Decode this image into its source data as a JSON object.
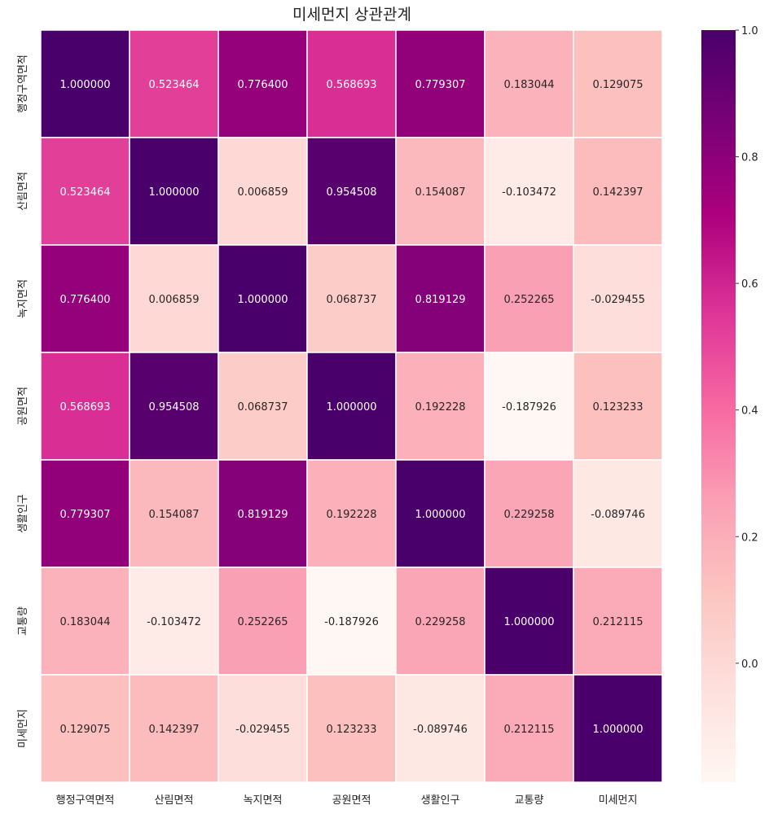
{
  "chart_data": {
    "type": "heatmap",
    "title": "미세먼지 상관관계",
    "labels": [
      "행정구역면적",
      "산림면적",
      "녹지면적",
      "공원면적",
      "생활인구",
      "교통량",
      "미세먼지"
    ],
    "matrix": [
      [
        1.0,
        0.523464,
        0.7764,
        0.568693,
        0.779307,
        0.183044,
        0.129075
      ],
      [
        0.523464,
        1.0,
        0.006859,
        0.954508,
        0.154087,
        -0.103472,
        0.142397
      ],
      [
        0.7764,
        0.006859,
        1.0,
        0.068737,
        0.819129,
        0.252265,
        -0.029455
      ],
      [
        0.568693,
        0.954508,
        0.068737,
        1.0,
        0.192228,
        -0.187926,
        0.123233
      ],
      [
        0.779307,
        0.154087,
        0.819129,
        0.192228,
        1.0,
        0.229258,
        -0.089746
      ],
      [
        0.183044,
        -0.103472,
        0.252265,
        -0.187926,
        0.229258,
        1.0,
        0.212115
      ],
      [
        0.129075,
        0.142397,
        -0.029455,
        0.123233,
        -0.089746,
        0.212115,
        1.0
      ]
    ],
    "cell_text": [
      [
        "1.000000",
        "0.523464",
        "0.776400",
        "0.568693",
        "0.779307",
        "0.183044",
        "0.129075"
      ],
      [
        "0.523464",
        "1.000000",
        "0.006859",
        "0.954508",
        "0.154087",
        "-0.103472",
        "0.142397"
      ],
      [
        "0.776400",
        "0.006859",
        "1.000000",
        "0.068737",
        "0.819129",
        "0.252265",
        "-0.029455"
      ],
      [
        "0.568693",
        "0.954508",
        "0.068737",
        "1.000000",
        "0.192228",
        "-0.187926",
        "0.123233"
      ],
      [
        "0.779307",
        "0.154087",
        "0.819129",
        "0.192228",
        "1.000000",
        "0.229258",
        "-0.089746"
      ],
      [
        "0.183044",
        "-0.103472",
        "0.252265",
        "-0.187926",
        "0.229258",
        "1.000000",
        "0.212115"
      ],
      [
        "0.129075",
        "0.142397",
        "-0.029455",
        "0.123233",
        "-0.089746",
        "0.212115",
        "1.000000"
      ]
    ],
    "colorbar": {
      "min": -0.187926,
      "max": 1.0,
      "ticks": [
        0.0,
        0.2,
        0.4,
        0.6,
        0.8,
        1.0
      ],
      "tick_labels": [
        "0.0",
        "0.2",
        "0.4",
        "0.6",
        "0.8",
        "1.0"
      ]
    },
    "colormap": "RdPu",
    "colormap_stops": [
      "#fff7f3",
      "#fde0dd",
      "#fcc5c0",
      "#fa9fb5",
      "#f768a1",
      "#dd3497",
      "#ae017e",
      "#7a0177",
      "#49006a"
    ],
    "cell_border_color": "#ffffff",
    "text_color_light": "#ffffff",
    "text_color_dark": "#262626"
  }
}
